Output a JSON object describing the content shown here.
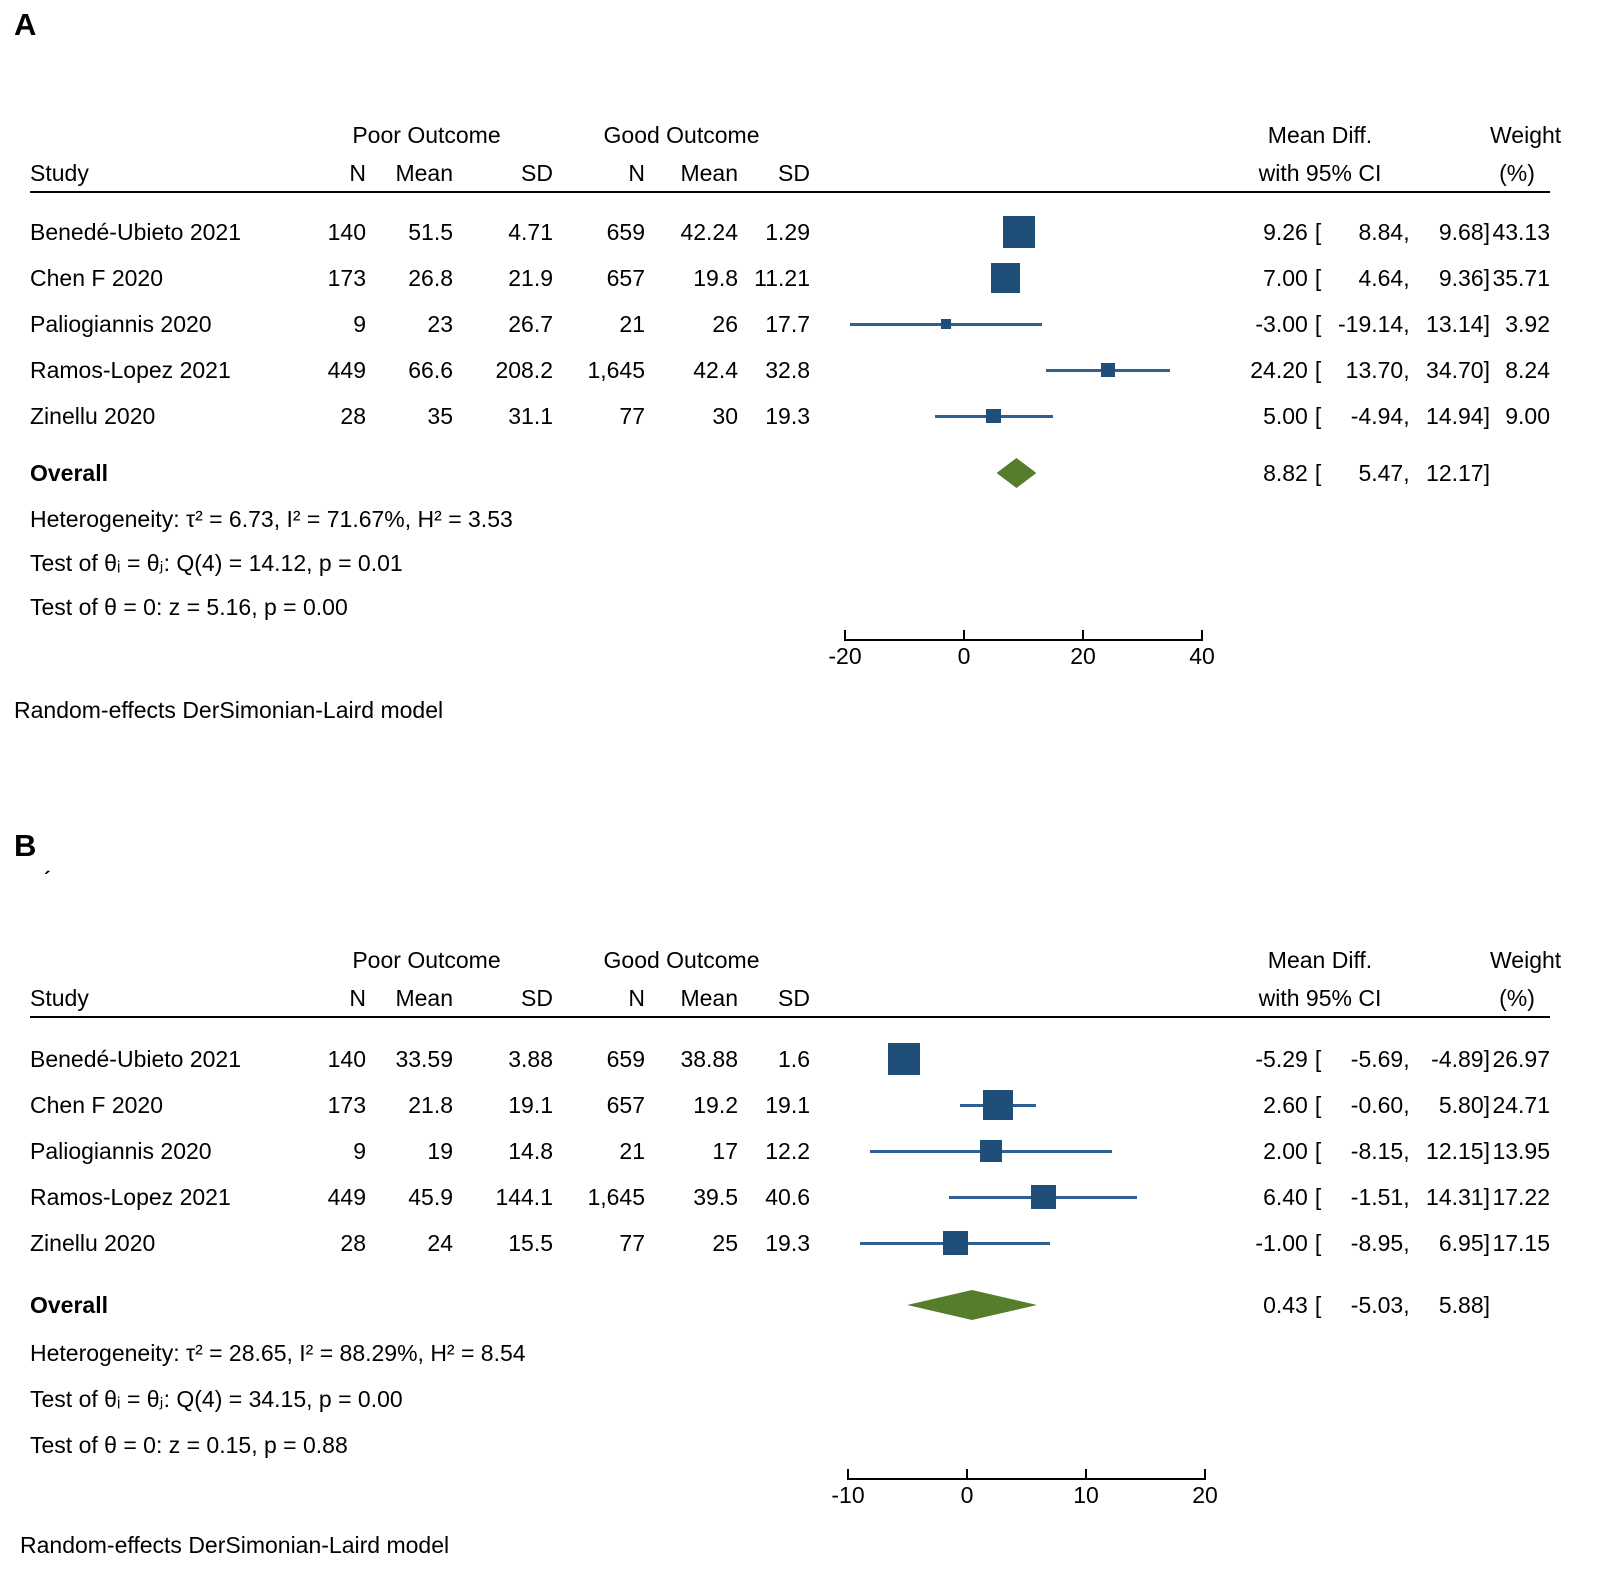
{
  "punct": {
    "open": "[",
    "comma": ",",
    "close": "]"
  },
  "colors": {
    "square": "#1f4e79",
    "ci_line": "#2e6191",
    "diamond": "#567d2b",
    "axis": "#000000",
    "rule": "#000000"
  },
  "chart_data": [
    {
      "type": "scatter",
      "subtype": "forest-plot",
      "panel_label": "A",
      "columns": {
        "study": "Study",
        "group1": "Poor Outcome",
        "group2": "Good Outcome",
        "n": "N",
        "mean": "Mean",
        "sd": "SD",
        "effect1": "Mean Diff.",
        "effect2": "with 95% CI",
        "weight1": "Weight",
        "weight2": "(%)"
      },
      "studies": [
        {
          "study": "Benedé-Ubieto 2021",
          "n1": "140",
          "mean1": "51.5",
          "sd1": "4.71",
          "n2": "659",
          "mean2": "42.24",
          "sd2": "1.29",
          "est": "9.26",
          "lo": "8.84",
          "hi": "9.68",
          "weight": "43.13"
        },
        {
          "study": "Chen F 2020",
          "n1": "173",
          "mean1": "26.8",
          "sd1": "21.9",
          "n2": "657",
          "mean2": "19.8",
          "sd2": "11.21",
          "est": "7.00",
          "lo": "4.64",
          "hi": "9.36",
          "weight": "35.71"
        },
        {
          "study": "Paliogiannis 2020",
          "n1": "9",
          "mean1": "23",
          "sd1": "26.7",
          "n2": "21",
          "mean2": "26",
          "sd2": "17.7",
          "est": "-3.00",
          "lo": "-19.14",
          "hi": "13.14",
          "weight": "3.92"
        },
        {
          "study": "Ramos-Lopez 2021",
          "n1": "449",
          "mean1": "66.6",
          "sd1": "208.2",
          "n2": "1,645",
          "mean2": "42.4",
          "sd2": "32.8",
          "est": "24.20",
          "lo": "13.70",
          "hi": "34.70",
          "weight": "8.24"
        },
        {
          "study": "Zinellu 2020",
          "n1": "28",
          "mean1": "35",
          "sd1": "31.1",
          "n2": "77",
          "mean2": "30",
          "sd2": "19.3",
          "est": "5.00",
          "lo": "-4.94",
          "hi": "14.94",
          "weight": "9.00"
        }
      ],
      "overall": {
        "label": "Overall",
        "est": "8.82",
        "lo": "5.47",
        "hi": "12.17"
      },
      "stats": {
        "heterogeneity": "Heterogeneity: τ² = 6.73, I² = 71.67%, H² = 3.53",
        "test_q": "Test of θᵢ = θⱼ: Q(4) = 14.12, p = 0.01",
        "test_z": "Test of θ = 0: z = 5.16, p = 0.00"
      },
      "axis": {
        "min": -20,
        "max": 40,
        "ticks": [
          "-20",
          "0",
          "20",
          "40"
        ]
      },
      "model_note": "Random-effects DerSimonian-Laird model"
    },
    {
      "type": "scatter",
      "subtype": "forest-plot",
      "panel_label": "B",
      "label_mark": "´",
      "columns": {
        "study": "Study",
        "group1": "Poor Outcome",
        "group2": "Good Outcome",
        "n": "N",
        "mean": "Mean",
        "sd": "SD",
        "effect1": "Mean Diff.",
        "effect2": "with 95% CI",
        "weight1": "Weight",
        "weight2": "(%)"
      },
      "studies": [
        {
          "study": "Benedé-Ubieto 2021",
          "n1": "140",
          "mean1": "33.59",
          "sd1": "3.88",
          "n2": "659",
          "mean2": "38.88",
          "sd2": "1.6",
          "est": "-5.29",
          "lo": "-5.69",
          "hi": "-4.89",
          "weight": "26.97"
        },
        {
          "study": "Chen F 2020",
          "n1": "173",
          "mean1": "21.8",
          "sd1": "19.1",
          "n2": "657",
          "mean2": "19.2",
          "sd2": "19.1",
          "est": "2.60",
          "lo": "-0.60",
          "hi": "5.80",
          "weight": "24.71"
        },
        {
          "study": "Paliogiannis 2020",
          "n1": "9",
          "mean1": "19",
          "sd1": "14.8",
          "n2": "21",
          "mean2": "17",
          "sd2": "12.2",
          "est": "2.00",
          "lo": "-8.15",
          "hi": "12.15",
          "weight": "13.95"
        },
        {
          "study": "Ramos-Lopez 2021",
          "n1": "449",
          "mean1": "45.9",
          "sd1": "144.1",
          "n2": "1,645",
          "mean2": "39.5",
          "sd2": "40.6",
          "est": "6.40",
          "lo": "-1.51",
          "hi": "14.31",
          "weight": "17.22"
        },
        {
          "study": "Zinellu 2020",
          "n1": "28",
          "mean1": "24",
          "sd1": "15.5",
          "n2": "77",
          "mean2": "25",
          "sd2": "19.3",
          "est": "-1.00",
          "lo": "-8.95",
          "hi": "6.95",
          "weight": "17.15"
        }
      ],
      "overall": {
        "label": "Overall",
        "est": "0.43",
        "lo": "-5.03",
        "hi": "5.88"
      },
      "stats": {
        "heterogeneity": "Heterogeneity: τ² = 28.65, I² = 88.29%, H² = 8.54",
        "test_q": "Test of θᵢ = θⱼ: Q(4) = 34.15, p = 0.00",
        "test_z": "Test of θ = 0: z = 0.15, p = 0.88"
      },
      "axis": {
        "min": -10,
        "max": 20,
        "ticks": [
          "-10",
          "0",
          "10",
          "20"
        ]
      },
      "model_note": "Random-effects DerSimonian-Laird model"
    }
  ]
}
